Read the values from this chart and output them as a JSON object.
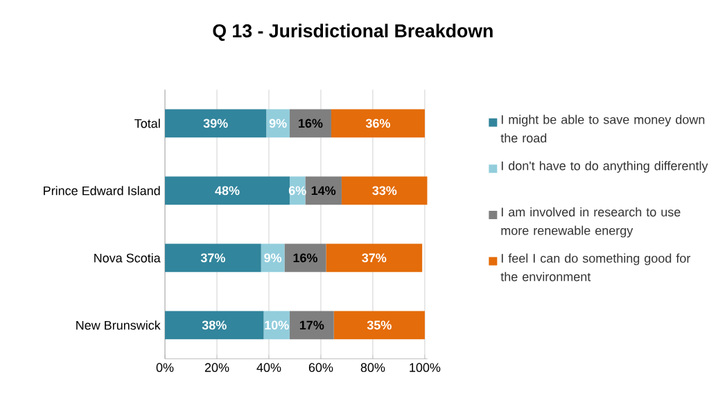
{
  "chart_data": {
    "type": "bar",
    "orientation": "horizontal",
    "stacked": true,
    "title": "Q 13 - Jurisdictional Breakdown",
    "categories": [
      "Total",
      "Prince Edward Island",
      "Nova Scotia",
      "New Brunswick"
    ],
    "series": [
      {
        "name": "I might be able to save money down the road",
        "color": "#31859c",
        "values": [
          39,
          48,
          37,
          38
        ],
        "value_labels": [
          "39%",
          "48%",
          "37%",
          "38%"
        ]
      },
      {
        "name": "I don't have to do anything differently",
        "color": "#92cddc",
        "values": [
          9,
          6,
          9,
          10
        ],
        "value_labels": [
          "9%",
          "6%",
          "9%",
          "10%"
        ]
      },
      {
        "name": "I am involved in research to use more renewable energy",
        "color": "#7f7f7f",
        "values": [
          16,
          14,
          16,
          17
        ],
        "value_labels": [
          "16%",
          "14%",
          "16%",
          "17%"
        ]
      },
      {
        "name": "I feel I can do something good for the environment",
        "color": "#e46c0a",
        "values": [
          36,
          33,
          37,
          35
        ],
        "value_labels": [
          "36%",
          "33%",
          "37%",
          "35%"
        ]
      }
    ],
    "xlim": [
      0,
      101
    ],
    "xticks": [
      {
        "value": 0,
        "label": "0%"
      },
      {
        "value": 20,
        "label": "20%"
      },
      {
        "value": 40,
        "label": "40%"
      },
      {
        "value": 60,
        "label": "60%"
      },
      {
        "value": 80,
        "label": "80%"
      },
      {
        "value": 100,
        "label": "100%"
      }
    ],
    "grid": "x",
    "legend": "right"
  }
}
